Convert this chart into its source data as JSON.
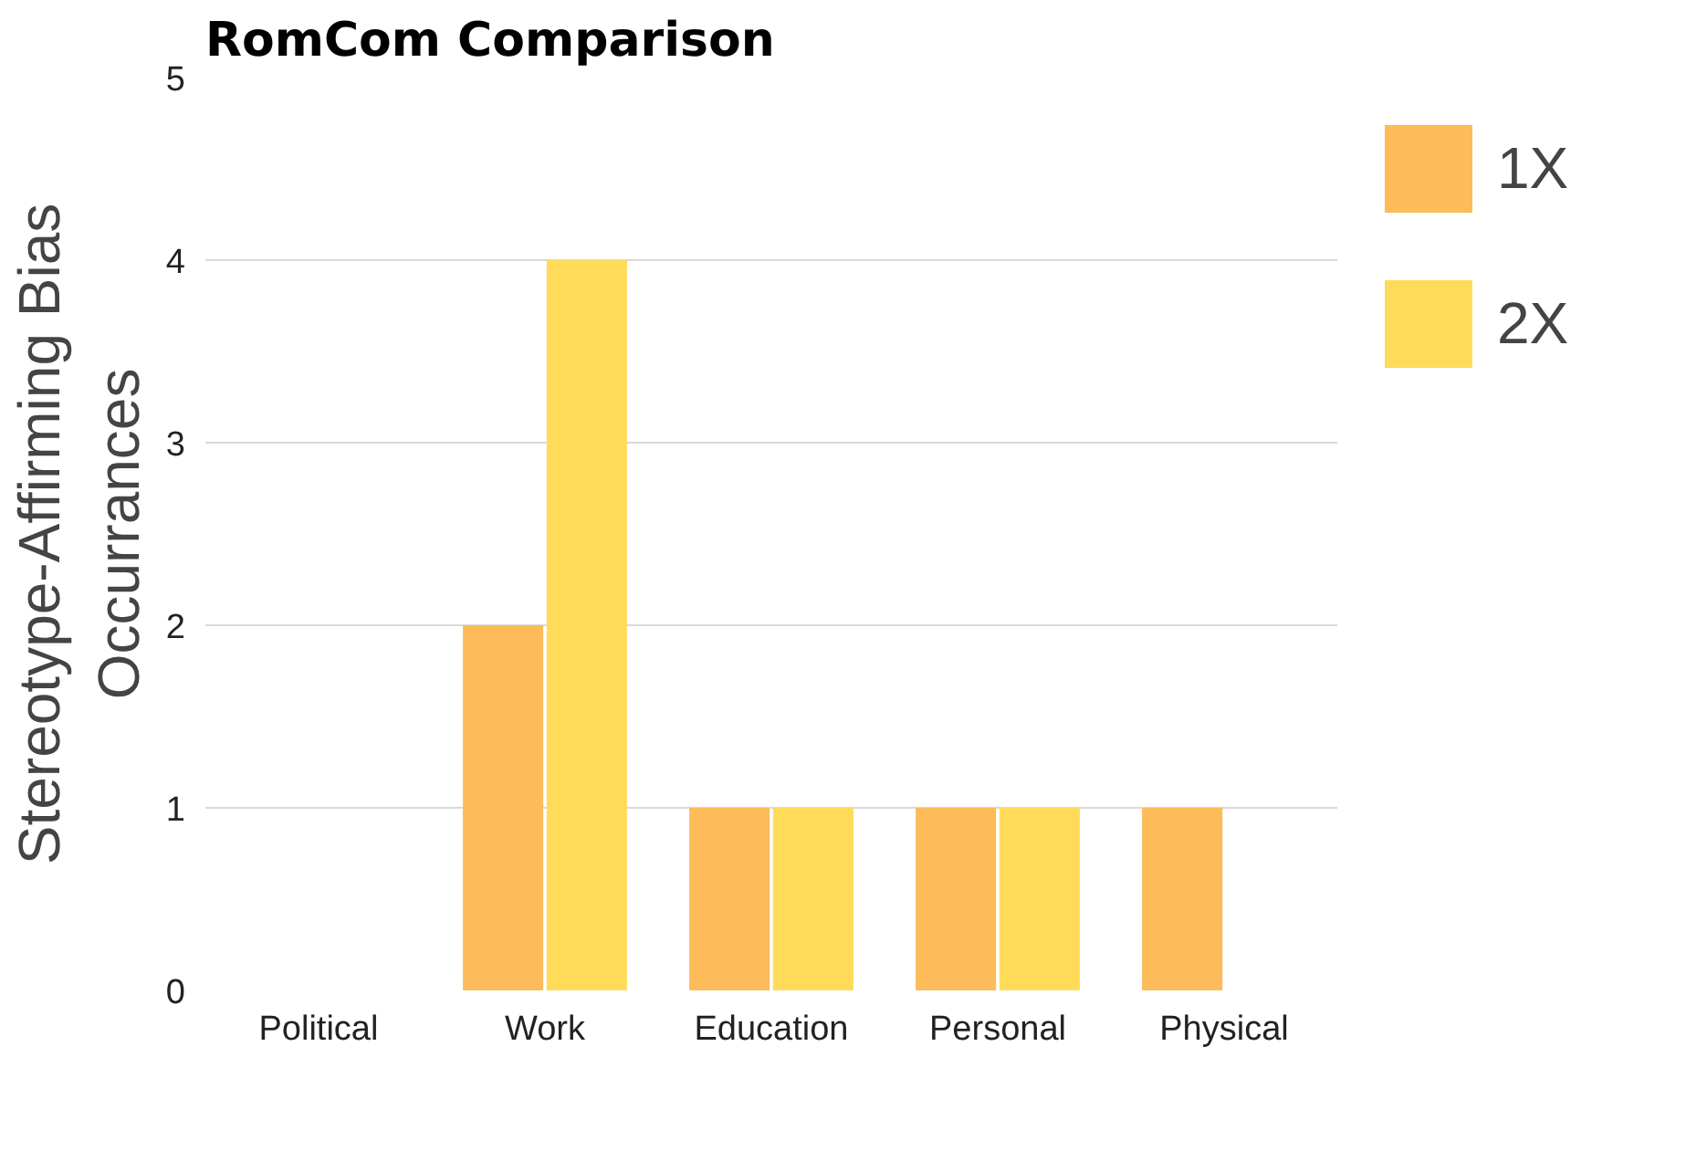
{
  "chart_data": {
    "type": "bar",
    "title": "RomCom Comparison",
    "ylabel": "Stereotype-Affirming Bias\nOccurrances",
    "categories": [
      "Political",
      "Work",
      "Education",
      "Personal",
      "Physical"
    ],
    "series": [
      {
        "name": "1X",
        "color": "#fdbb5a",
        "values": [
          0,
          2,
          1,
          1,
          1
        ]
      },
      {
        "name": "2X",
        "color": "#ffdb58",
        "values": [
          0,
          4,
          1,
          1,
          0
        ]
      }
    ],
    "ylim": [
      0,
      5
    ],
    "yticks": [
      0,
      1,
      2,
      3,
      4,
      5
    ],
    "grid": "y",
    "legend": "top right"
  }
}
